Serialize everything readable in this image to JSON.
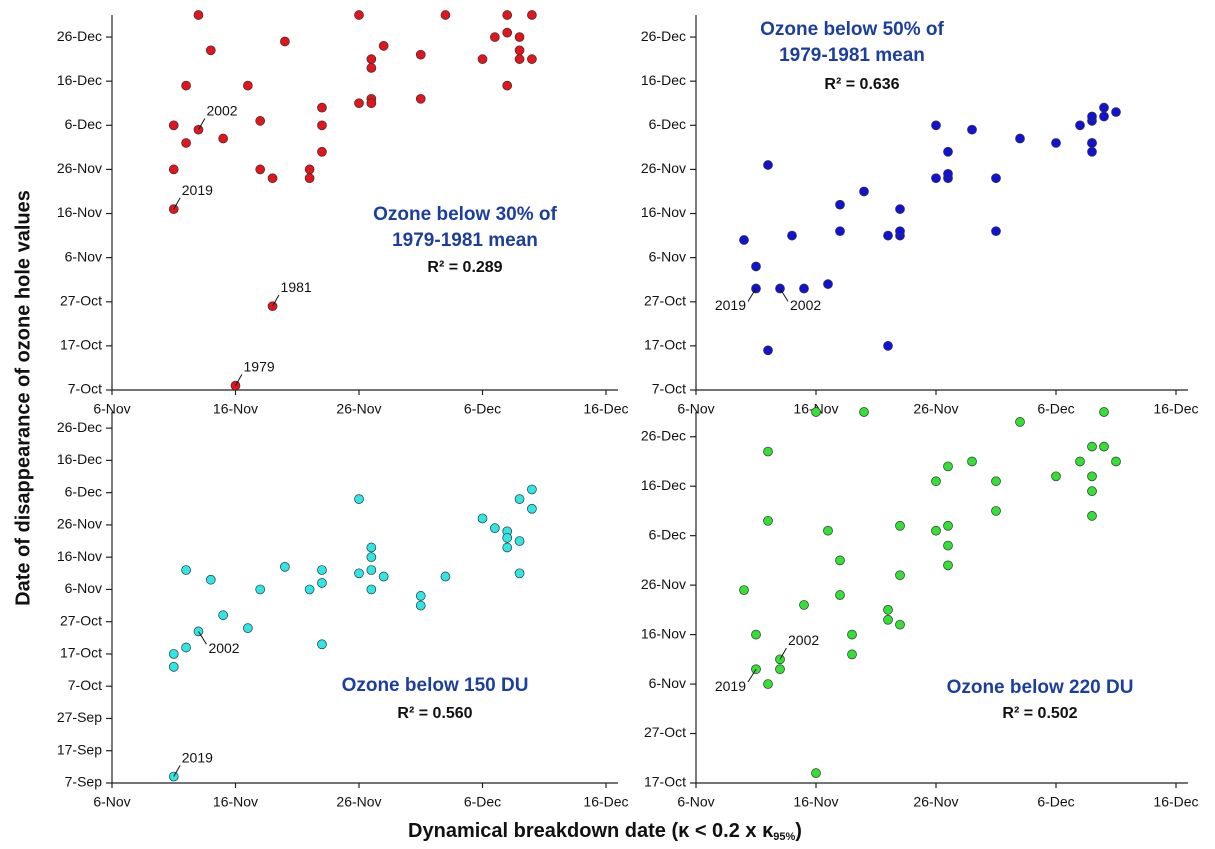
{
  "ylabel": "Date of disappearance of ozone hole values",
  "xlabel": {
    "text": "Dynamical breakdown date (κ < 0.2 x κ",
    "subscript": "95%",
    "suffix": ")"
  },
  "chart_data": [
    {
      "type": "scatter",
      "title": [
        "Ozone below 30% of",
        "1979-1981 mean"
      ],
      "r2_label": "R² = 0.289",
      "color": "#e3141b",
      "grid": false,
      "x": [
        "11-Nov",
        "11-Nov",
        "11-Nov",
        "12-Nov",
        "12-Nov",
        "13-Nov",
        "13-Nov",
        "14-Nov",
        "15-Nov",
        "16-Nov",
        "17-Nov",
        "18-Nov",
        "18-Nov",
        "19-Nov",
        "19-Nov",
        "20-Nov",
        "22-Nov",
        "22-Nov",
        "23-Nov",
        "23-Nov",
        "23-Nov",
        "26-Nov",
        "26-Nov",
        "27-Nov",
        "27-Nov",
        "27-Nov",
        "27-Nov",
        "28-Nov",
        "1-Dec",
        "1-Dec",
        "3-Dec",
        "6-Dec",
        "7-Dec",
        "8-Dec",
        "8-Dec",
        "8-Dec",
        "9-Dec",
        "9-Dec",
        "9-Dec",
        "10-Dec",
        "10-Dec"
      ],
      "values": [
        "6-Dec",
        "26-Nov",
        "17-Nov",
        "15-Dec",
        "2-Dec",
        "5-Dec",
        "31-Dec",
        "23-Dec",
        "3-Dec",
        "8-Oct",
        "15-Dec",
        "7-Dec",
        "26-Nov",
        "24-Nov",
        "26-Oct",
        "25-Dec",
        "24-Nov",
        "26-Nov",
        "30-Nov",
        "10-Dec",
        "6-Dec",
        "11-Dec",
        "31-Dec",
        "12-Dec",
        "19-Dec",
        "21-Dec",
        "11-Dec",
        "24-Dec",
        "12-Dec",
        "22-Dec",
        "31-Dec",
        "21-Dec",
        "26-Dec",
        "31-Dec",
        "15-Dec",
        "27-Dec",
        "26-Dec",
        "21-Dec",
        "23-Dec",
        "31-Dec",
        "21-Dec"
      ],
      "xlim": [
        "6-Nov",
        "16-Dec"
      ],
      "ylim": [
        "7-Oct",
        "31-Dec"
      ],
      "xticks": [
        "6-Nov",
        "16-Nov",
        "26-Nov",
        "6-Dec",
        "16-Dec"
      ],
      "yticks": [
        "7-Oct",
        "17-Oct",
        "27-Oct",
        "6-Nov",
        "16-Nov",
        "26-Nov",
        "6-Dec",
        "16-Dec",
        "26-Dec"
      ],
      "annotations": [
        {
          "text": "2002",
          "x": "13-Nov",
          "y": "5-Dec"
        },
        {
          "text": "2019",
          "x": "11-Nov",
          "y": "17-Nov"
        },
        {
          "text": "1981",
          "x": "19-Nov",
          "y": "26-Oct"
        },
        {
          "text": "1979",
          "x": "16-Nov",
          "y": "8-Oct"
        }
      ]
    },
    {
      "type": "scatter",
      "title": [
        "Ozone below 50% of",
        "1979-1981 mean"
      ],
      "r2_label": "R² = 0.636",
      "color": "#1212d4",
      "grid": false,
      "x": [
        "10-Nov",
        "11-Nov",
        "11-Nov",
        "12-Nov",
        "12-Nov",
        "13-Nov",
        "14-Nov",
        "15-Nov",
        "17-Nov",
        "18-Nov",
        "18-Nov",
        "20-Nov",
        "22-Nov",
        "22-Nov",
        "23-Nov",
        "23-Nov",
        "23-Nov",
        "26-Nov",
        "26-Nov",
        "27-Nov",
        "27-Nov",
        "27-Nov",
        "29-Nov",
        "1-Dec",
        "1-Dec",
        "3-Dec",
        "6-Dec",
        "8-Dec",
        "9-Dec",
        "9-Dec",
        "9-Dec",
        "9-Dec",
        "9-Dec",
        "10-Dec",
        "10-Dec",
        "11-Dec"
      ],
      "values": [
        "10-Nov",
        "4-Nov",
        "30-Oct",
        "27-Nov",
        "16-Oct",
        "30-Oct",
        "11-Nov",
        "30-Oct",
        "31-Oct",
        "18-Nov",
        "12-Nov",
        "21-Nov",
        "11-Nov",
        "17-Oct",
        "11-Nov",
        "12-Nov",
        "17-Nov",
        "24-Nov",
        "6-Dec",
        "24-Nov",
        "30-Nov",
        "25-Nov",
        "5-Dec",
        "24-Nov",
        "12-Nov",
        "3-Dec",
        "2-Dec",
        "6-Dec",
        "2-Dec",
        "30-Nov",
        "2-Dec",
        "7-Dec",
        "8-Dec",
        "8-Dec",
        "10-Dec",
        "9-Dec"
      ],
      "xlim": [
        "6-Nov",
        "16-Dec"
      ],
      "ylim": [
        "7-Oct",
        "31-Dec"
      ],
      "xticks": [
        "6-Nov",
        "16-Nov",
        "26-Nov",
        "6-Dec",
        "16-Dec"
      ],
      "yticks": [
        "7-Oct",
        "17-Oct",
        "27-Oct",
        "6-Nov",
        "16-Nov",
        "26-Nov",
        "6-Dec",
        "16-Dec",
        "26-Dec"
      ],
      "annotations": [
        {
          "text": "2019",
          "x": "11-Nov",
          "y": "30-Oct"
        },
        {
          "text": "2002",
          "x": "13-Nov",
          "y": "30-Oct"
        }
      ]
    },
    {
      "type": "scatter",
      "title": [
        "Ozone below 150 DU"
      ],
      "r2_label": "R² = 0.560",
      "color": "#2ee6e6",
      "grid": false,
      "x": [
        "11-Nov",
        "11-Nov",
        "11-Nov",
        "12-Nov",
        "12-Nov",
        "13-Nov",
        "14-Nov",
        "15-Nov",
        "17-Nov",
        "18-Nov",
        "20-Nov",
        "22-Nov",
        "23-Nov",
        "23-Nov",
        "23-Nov",
        "26-Nov",
        "26-Nov",
        "27-Nov",
        "27-Nov",
        "27-Nov",
        "27-Nov",
        "28-Nov",
        "1-Dec",
        "1-Dec",
        "3-Dec",
        "6-Dec",
        "7-Dec",
        "8-Dec",
        "8-Dec",
        "8-Dec",
        "9-Dec",
        "9-Dec",
        "9-Dec",
        "10-Dec",
        "10-Dec"
      ],
      "values": [
        "17-Oct",
        "13-Oct",
        "9-Sep",
        "19-Oct",
        "12-Nov",
        "24-Oct",
        "9-Nov",
        "29-Oct",
        "25-Oct",
        "6-Nov",
        "13-Nov",
        "6-Nov",
        "20-Oct",
        "12-Nov",
        "8-Nov",
        "11-Nov",
        "4-Dec",
        "12-Nov",
        "6-Nov",
        "16-Nov",
        "19-Nov",
        "10-Nov",
        "4-Nov",
        "1-Nov",
        "10-Nov",
        "28-Nov",
        "25-Nov",
        "24-Nov",
        "22-Nov",
        "19-Nov",
        "11-Nov",
        "21-Nov",
        "4-Dec",
        "1-Dec",
        "7-Dec"
      ],
      "xlim": [
        "6-Nov",
        "16-Dec"
      ],
      "ylim": [
        "7-Sep",
        "31-Dec"
      ],
      "xticks": [
        "6-Nov",
        "16-Nov",
        "26-Nov",
        "6-Dec",
        "16-Dec"
      ],
      "yticks": [
        "7-Sep",
        "17-Sep",
        "27-Sep",
        "7-Oct",
        "17-Oct",
        "27-Oct",
        "6-Nov",
        "16-Nov",
        "26-Nov",
        "6-Dec",
        "16-Dec",
        "26-Dec"
      ],
      "annotations": [
        {
          "text": "2002",
          "x": "13-Nov",
          "y": "24-Oct"
        },
        {
          "text": "2019",
          "x": "11-Nov",
          "y": "9-Sep"
        }
      ]
    },
    {
      "type": "scatter",
      "title": [
        "Ozone below 220 DU"
      ],
      "r2_label": "R² = 0.502",
      "color": "#33e033",
      "grid": false,
      "x": [
        "10-Nov",
        "11-Nov",
        "11-Nov",
        "12-Nov",
        "12-Nov",
        "13-Nov",
        "13-Nov",
        "12-Nov",
        "15-Nov",
        "16-Nov",
        "16-Nov",
        "17-Nov",
        "18-Nov",
        "18-Nov",
        "19-Nov",
        "19-Nov",
        "20-Nov",
        "22-Nov",
        "22-Nov",
        "23-Nov",
        "23-Nov",
        "23-Nov",
        "26-Nov",
        "26-Nov",
        "27-Nov",
        "27-Nov",
        "27-Nov",
        "27-Nov",
        "29-Nov",
        "1-Dec",
        "1-Dec",
        "3-Dec",
        "6-Dec",
        "8-Dec",
        "9-Dec",
        "9-Dec",
        "9-Dec",
        "9-Dec",
        "10-Dec",
        "10-Dec",
        "11-Dec"
      ],
      "values": [
        "25-Nov",
        "16-Nov",
        "9-Nov",
        "9-Dec",
        "6-Nov",
        "11-Nov",
        "9-Nov",
        "23-Dec",
        "22-Nov",
        "31-Dec",
        "19-Oct",
        "7-Dec",
        "1-Dec",
        "24-Nov",
        "16-Nov",
        "12-Nov",
        "31-Dec",
        "21-Nov",
        "19-Nov",
        "18-Nov",
        "8-Dec",
        "28-Nov",
        "7-Dec",
        "17-Dec",
        "8-Dec",
        "20-Dec",
        "4-Dec",
        "30-Nov",
        "21-Dec",
        "17-Dec",
        "11-Dec",
        "29-Dec",
        "18-Dec",
        "21-Dec",
        "24-Dec",
        "15-Dec",
        "10-Dec",
        "18-Dec",
        "24-Dec",
        "31-Dec",
        "21-Dec"
      ],
      "xlim": [
        "6-Nov",
        "16-Dec"
      ],
      "ylim": [
        "17-Oct",
        "31-Dec"
      ],
      "xticks": [
        "6-Nov",
        "16-Nov",
        "26-Nov",
        "6-Dec",
        "16-Dec"
      ],
      "yticks": [
        "17-Oct",
        "27-Oct",
        "6-Nov",
        "16-Nov",
        "26-Nov",
        "6-Dec",
        "16-Dec",
        "26-Dec"
      ],
      "annotations": [
        {
          "text": "2002",
          "x": "13-Nov",
          "y": "11-Nov"
        },
        {
          "text": "2019",
          "x": "11-Nov",
          "y": "9-Nov"
        }
      ]
    }
  ]
}
